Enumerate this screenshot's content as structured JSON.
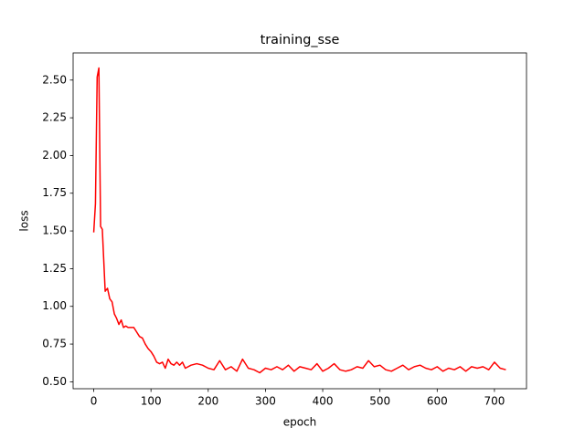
{
  "chart_data": {
    "type": "line",
    "title": "training_sse",
    "x_label": "epoch",
    "y_label": "loss",
    "x": [
      0,
      3,
      6,
      9,
      12,
      15,
      20,
      24,
      28,
      32,
      36,
      40,
      44,
      48,
      52,
      56,
      60,
      70,
      75,
      80,
      85,
      90,
      95,
      100,
      105,
      110,
      115,
      120,
      125,
      130,
      135,
      140,
      145,
      150,
      155,
      160,
      170,
      180,
      190,
      200,
      210,
      220,
      230,
      240,
      250,
      260,
      270,
      280,
      290,
      300,
      310,
      320,
      330,
      340,
      350,
      360,
      370,
      380,
      390,
      400,
      410,
      420,
      430,
      440,
      450,
      460,
      470,
      480,
      490,
      500,
      510,
      520,
      530,
      540,
      550,
      560,
      570,
      580,
      590,
      600,
      610,
      620,
      630,
      640,
      650,
      660,
      670,
      680,
      690,
      700,
      710,
      720
    ],
    "series": [
      {
        "name": "training_sse",
        "color": "#ff0000",
        "values": [
          1.49,
          1.68,
          2.52,
          2.58,
          1.53,
          1.51,
          1.1,
          1.12,
          1.05,
          1.03,
          0.95,
          0.92,
          0.88,
          0.91,
          0.86,
          0.87,
          0.86,
          0.86,
          0.83,
          0.8,
          0.79,
          0.75,
          0.72,
          0.7,
          0.67,
          0.63,
          0.62,
          0.63,
          0.59,
          0.65,
          0.62,
          0.61,
          0.63,
          0.61,
          0.63,
          0.59,
          0.61,
          0.62,
          0.61,
          0.59,
          0.58,
          0.64,
          0.58,
          0.6,
          0.57,
          0.65,
          0.59,
          0.58,
          0.56,
          0.59,
          0.58,
          0.6,
          0.58,
          0.61,
          0.57,
          0.6,
          0.59,
          0.58,
          0.62,
          0.57,
          0.59,
          0.62,
          0.58,
          0.57,
          0.58,
          0.6,
          0.59,
          0.64,
          0.6,
          0.61,
          0.58,
          0.57,
          0.59,
          0.61,
          0.58,
          0.6,
          0.61,
          0.59,
          0.58,
          0.6,
          0.57,
          0.59,
          0.58,
          0.6,
          0.57,
          0.6,
          0.59,
          0.6,
          0.58,
          0.63,
          0.59,
          0.58
        ]
      }
    ],
    "xlim": [
      -36,
      756
    ],
    "xticks": [
      0,
      100,
      200,
      300,
      400,
      500,
      600,
      700
    ],
    "ylim": [
      0.454,
      2.68
    ],
    "yticks": [
      {
        "value": 0.5,
        "label": "0.50"
      },
      {
        "value": 0.75,
        "label": "0.75"
      },
      {
        "value": 1.0,
        "label": "1.00"
      },
      {
        "value": 1.25,
        "label": "1.25"
      },
      {
        "value": 1.5,
        "label": "1.50"
      },
      {
        "value": 1.75,
        "label": "1.75"
      },
      {
        "value": 2.0,
        "label": "2.00"
      },
      {
        "value": 2.25,
        "label": "2.25"
      },
      {
        "value": 2.5,
        "label": "2.50"
      }
    ],
    "grid": false
  }
}
